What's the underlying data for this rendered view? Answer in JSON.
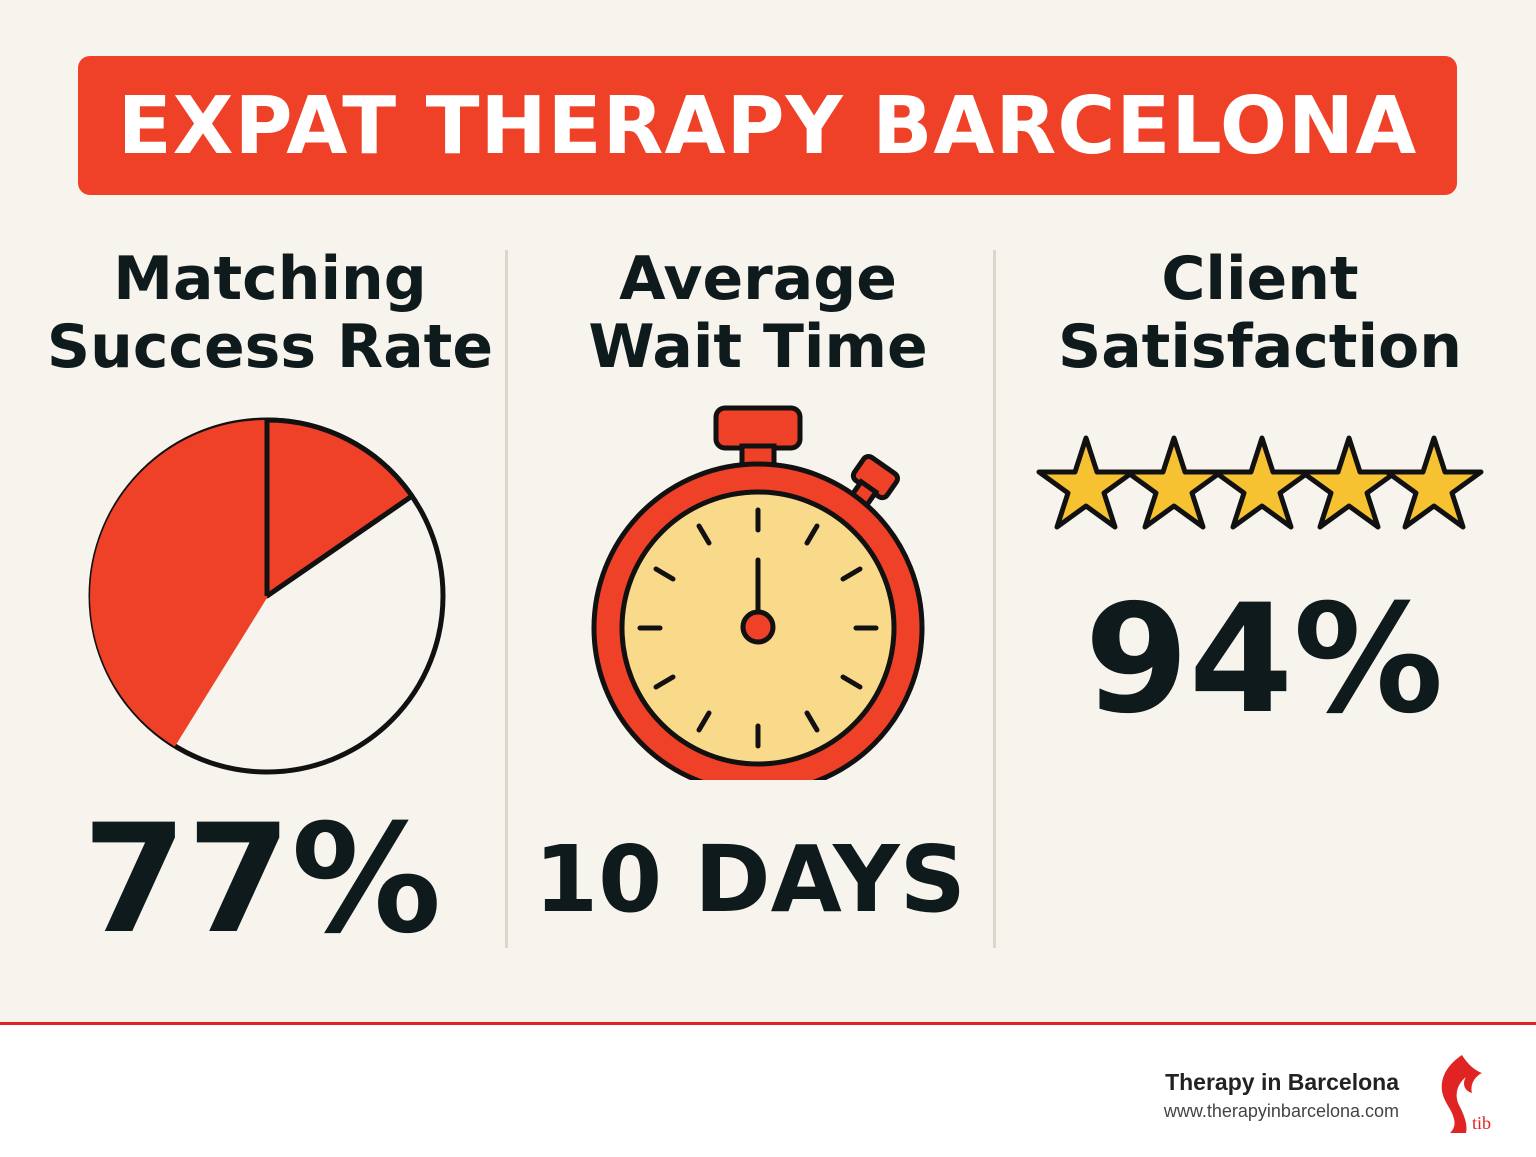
{
  "banner": {
    "title": "EXPAT THERAPY BARCELONA"
  },
  "stats": [
    {
      "title_line1": "Matching",
      "title_line2": "Success Rate",
      "value": "77%",
      "visual": "pie-chart-icon"
    },
    {
      "title_line1": "Average",
      "title_line2": "Wait Time",
      "value": "10 DAYS",
      "visual": "stopwatch-icon"
    },
    {
      "title_line1": "Client",
      "title_line2": "Satisfaction",
      "value": "94%",
      "visual": "five-stars-icon",
      "stars": 5
    }
  ],
  "footer": {
    "brand_name": "Therapy in Barcelona",
    "brand_url": "www.therapyinbarcelona.com",
    "logo_text": "tib"
  },
  "colors": {
    "accent_red": "#ef4128",
    "background": "#f7f3ed",
    "dark_text": "#0e1a1c",
    "star_yellow": "#f7c232",
    "clock_face": "#f9d98a"
  }
}
